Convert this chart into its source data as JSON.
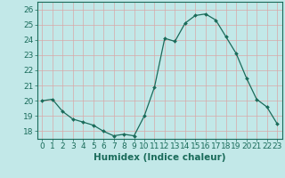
{
  "x": [
    0,
    1,
    2,
    3,
    4,
    5,
    6,
    7,
    8,
    9,
    10,
    11,
    12,
    13,
    14,
    15,
    16,
    17,
    18,
    19,
    20,
    21,
    22,
    23
  ],
  "y": [
    20.0,
    20.1,
    19.3,
    18.8,
    18.6,
    18.4,
    18.0,
    17.7,
    17.8,
    17.7,
    19.0,
    20.9,
    24.1,
    23.9,
    25.1,
    25.6,
    25.7,
    25.3,
    24.2,
    23.1,
    21.5,
    20.1,
    19.6,
    18.5
  ],
  "line_color": "#1a6b5a",
  "marker": "D",
  "marker_size": 2.0,
  "bg_color": "#c2e8e8",
  "grid_color": "#d8a8a8",
  "xlabel": "Humidex (Indice chaleur)",
  "ylim": [
    17.5,
    26.5
  ],
  "xlim": [
    -0.5,
    23.5
  ],
  "yticks": [
    18,
    19,
    20,
    21,
    22,
    23,
    24,
    25,
    26
  ],
  "xticks": [
    0,
    1,
    2,
    3,
    4,
    5,
    6,
    7,
    8,
    9,
    10,
    11,
    12,
    13,
    14,
    15,
    16,
    17,
    18,
    19,
    20,
    21,
    22,
    23
  ],
  "xlabel_fontsize": 7.5,
  "tick_fontsize": 6.5
}
